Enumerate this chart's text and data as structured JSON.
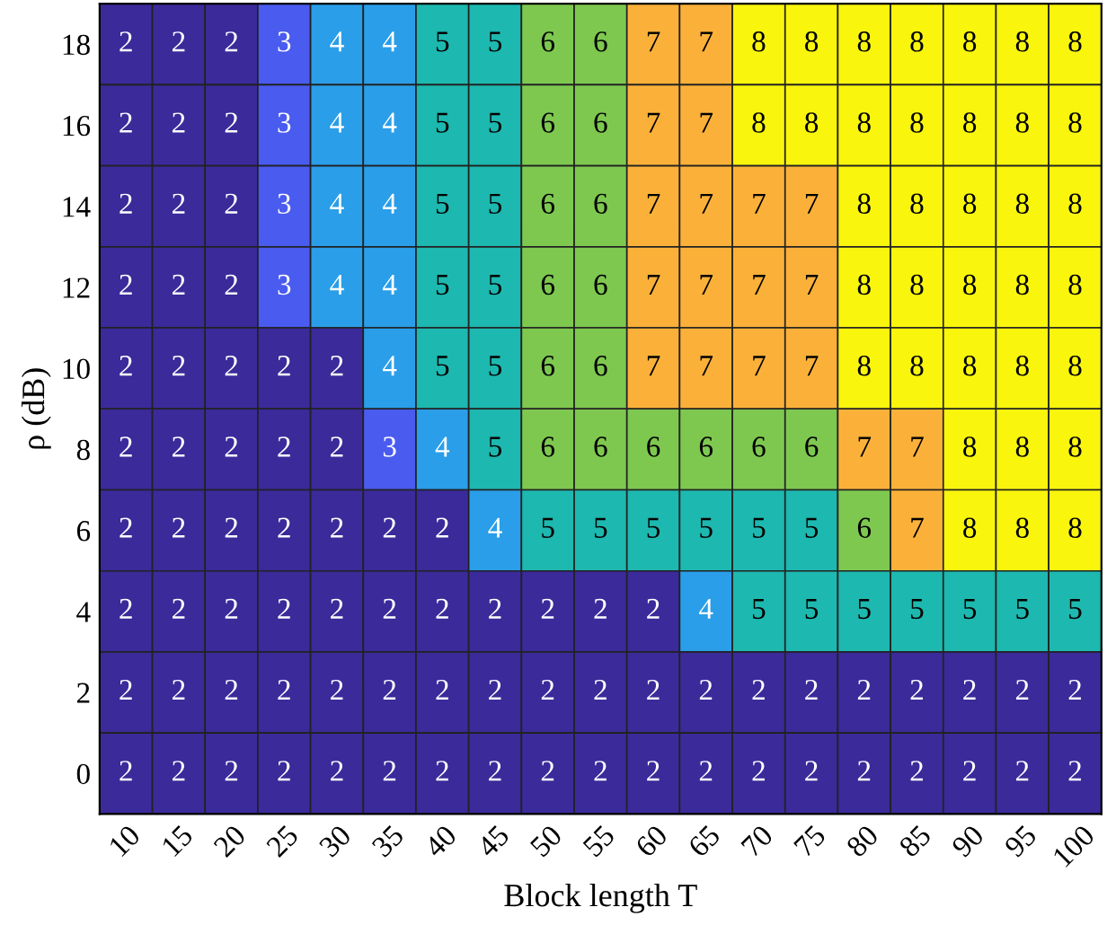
{
  "chart_data": {
    "type": "heatmap",
    "data_labels": true,
    "xlabel": "Block length T",
    "ylabel": "ρ (dB)",
    "categories": [
      "10",
      "15",
      "20",
      "25",
      "30",
      "35",
      "40",
      "45",
      "50",
      "55",
      "60",
      "65",
      "70",
      "75",
      "80",
      "85",
      "90",
      "95",
      "100"
    ],
    "y_categories": [
      "18",
      "16",
      "14",
      "12",
      "10",
      "8",
      "6",
      "4",
      "2",
      "0"
    ],
    "cells": [
      [
        2,
        2,
        2,
        3,
        4,
        4,
        5,
        5,
        6,
        6,
        7,
        7,
        8,
        8,
        8,
        8,
        8,
        8,
        8
      ],
      [
        2,
        2,
        2,
        3,
        4,
        4,
        5,
        5,
        6,
        6,
        7,
        7,
        8,
        8,
        8,
        8,
        8,
        8,
        8
      ],
      [
        2,
        2,
        2,
        3,
        4,
        4,
        5,
        5,
        6,
        6,
        7,
        7,
        7,
        7,
        8,
        8,
        8,
        8,
        8
      ],
      [
        2,
        2,
        2,
        3,
        4,
        4,
        5,
        5,
        6,
        6,
        7,
        7,
        7,
        7,
        8,
        8,
        8,
        8,
        8
      ],
      [
        2,
        2,
        2,
        2,
        2,
        4,
        5,
        5,
        6,
        6,
        7,
        7,
        7,
        7,
        8,
        8,
        8,
        8,
        8
      ],
      [
        2,
        2,
        2,
        2,
        2,
        3,
        4,
        5,
        6,
        6,
        6,
        6,
        6,
        6,
        7,
        7,
        8,
        8,
        8
      ],
      [
        2,
        2,
        2,
        2,
        2,
        2,
        2,
        4,
        5,
        5,
        5,
        5,
        5,
        5,
        6,
        7,
        8,
        8,
        8
      ],
      [
        2,
        2,
        2,
        2,
        2,
        2,
        2,
        2,
        2,
        2,
        2,
        4,
        5,
        5,
        5,
        5,
        5,
        5,
        5
      ],
      [
        2,
        2,
        2,
        2,
        2,
        2,
        2,
        2,
        2,
        2,
        2,
        2,
        2,
        2,
        2,
        2,
        2,
        2,
        2
      ],
      [
        2,
        2,
        2,
        2,
        2,
        2,
        2,
        2,
        2,
        2,
        2,
        2,
        2,
        2,
        2,
        2,
        2,
        2,
        2
      ]
    ]
  }
}
